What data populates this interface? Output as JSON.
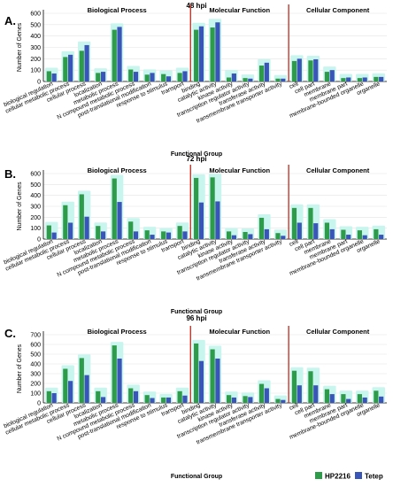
{
  "legend": [
    {
      "name": "HP2216",
      "color": "#2e9b4a"
    },
    {
      "name": "Tetep",
      "color": "#3a55b8"
    }
  ],
  "colors": {
    "band": "#c9f5ef",
    "divider": "#c0392b",
    "axis": "#000000"
  },
  "chart_data": [
    {
      "type": "bar",
      "panel_label": "A.",
      "title": "48 hpi",
      "xlabel": "Functional Group",
      "ylabel": "Number of Genes",
      "ylim": [
        0,
        600
      ],
      "yticks": [
        0,
        100,
        200,
        300,
        400,
        500,
        600
      ],
      "group_labels": [
        "Biological Process",
        "Molecular Function",
        "Cellular Component"
      ],
      "group_sizes": [
        9,
        6,
        6
      ],
      "categories": [
        "biological regulation",
        "cellular metabolic process",
        "cellular process",
        "localization",
        "metabolic process",
        "N compound metabolic process",
        "post-translational modification",
        "response to stimulus",
        "transport",
        "binding",
        "catalytic activity",
        "kinase activity",
        "transcription regulator activity",
        "transferase activity",
        "transmembrane transporter activity",
        "cell",
        "cell part",
        "membrane",
        "membrane part",
        "membrane-bounded organelle",
        "organelle"
      ],
      "series": [
        {
          "name": "HP2216",
          "values": [
            90,
            215,
            270,
            75,
            455,
            105,
            60,
            65,
            75,
            455,
            475,
            35,
            30,
            140,
            25,
            180,
            185,
            85,
            30,
            30,
            40
          ]
        },
        {
          "name": "Tetep",
          "values": [
            70,
            235,
            320,
            85,
            480,
            85,
            75,
            45,
            90,
            485,
            520,
            70,
            25,
            165,
            25,
            200,
            195,
            100,
            35,
            35,
            40
          ]
        }
      ]
    },
    {
      "type": "bar",
      "panel_label": "B.",
      "title": "72 hpi",
      "xlabel": "Functional Group",
      "ylabel": "Number of Genes",
      "ylim": [
        0,
        600
      ],
      "yticks": [
        0,
        100,
        200,
        300,
        400,
        500,
        600
      ],
      "group_labels": [
        "Biological Process",
        "Molecular Function",
        "Cellular Component"
      ],
      "group_sizes": [
        9,
        6,
        6
      ],
      "categories": [
        "biological regulation",
        "cellular metabolic process",
        "cellular process",
        "localization",
        "metabolic process",
        "N compound metabolic process",
        "post-translational modification",
        "response to stimulus",
        "transport",
        "binding",
        "catalytic activity",
        "kinase activity",
        "transcription regulator activity",
        "transferase activity",
        "transmembrane transporter activity",
        "cell",
        "cell part",
        "membrane",
        "membrane part",
        "membrane-bounded organelle",
        "organelle"
      ],
      "series": [
        {
          "name": "HP2216",
          "values": [
            125,
            310,
            410,
            120,
            555,
            160,
            80,
            70,
            120,
            560,
            565,
            70,
            65,
            195,
            55,
            285,
            285,
            150,
            85,
            80,
            90
          ]
        },
        {
          "name": "Tetep",
          "values": [
            60,
            150,
            205,
            70,
            340,
            70,
            40,
            60,
            70,
            335,
            345,
            35,
            45,
            90,
            30,
            150,
            145,
            90,
            40,
            35,
            40
          ]
        }
      ]
    },
    {
      "type": "bar",
      "panel_label": "C.",
      "title": "96 hpi",
      "xlabel": "Functional Group",
      "ylabel": "Number of Genes",
      "ylim": [
        0,
        700
      ],
      "yticks": [
        0,
        100,
        200,
        300,
        400,
        500,
        600,
        700
      ],
      "group_labels": [
        "Biological Process",
        "Molecular Function",
        "Cellular Component"
      ],
      "group_sizes": [
        9,
        6,
        6
      ],
      "categories": [
        "biological regulation",
        "cellular metabolic process",
        "cellular process",
        "localization",
        "metabolic process",
        "N compound metabolic process",
        "post-translational modification",
        "response to stimulus",
        "transport",
        "binding",
        "catalytic activity",
        "kinase activity",
        "transcription regulator activity",
        "transferase activity",
        "transmembrane transporter activity",
        "cell",
        "cell part",
        "membrane",
        "membrane part",
        "membrane-bounded organelle",
        "organelle"
      ],
      "series": [
        {
          "name": "HP2216",
          "values": [
            120,
            350,
            460,
            120,
            590,
            150,
            80,
            55,
            120,
            610,
            550,
            80,
            70,
            195,
            40,
            330,
            325,
            140,
            90,
            90,
            125
          ]
        },
        {
          "name": "Tetep",
          "values": [
            100,
            225,
            285,
            60,
            455,
            120,
            50,
            55,
            75,
            430,
            455,
            55,
            60,
            150,
            30,
            180,
            180,
            90,
            40,
            55,
            65
          ]
        }
      ]
    }
  ]
}
